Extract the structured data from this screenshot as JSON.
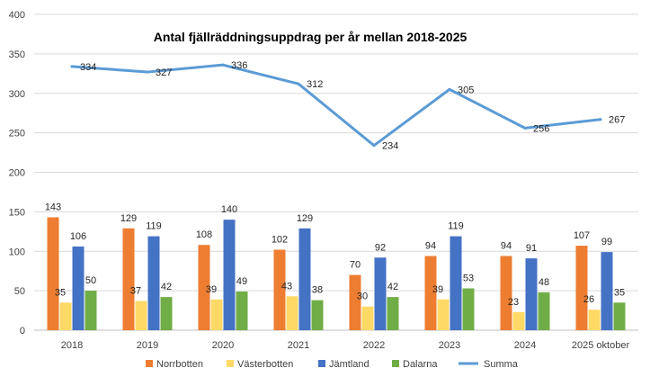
{
  "chart_data": {
    "type": "bar",
    "title": "Antal fjällräddningsuppdrag per år mellan 2018-2025",
    "categories": [
      "2018",
      "2019",
      "2020",
      "2021",
      "2022",
      "2023",
      "2024",
      "2025 oktober"
    ],
    "ylim": [
      0,
      400
    ],
    "yticks": [
      0,
      50,
      100,
      150,
      200,
      250,
      300,
      350,
      400
    ],
    "grid": true,
    "legend_position": "bottom",
    "series": [
      {
        "name": "Norrbotten",
        "kind": "bar",
        "color": "#ed7d31",
        "values": [
          143,
          129,
          108,
          102,
          70,
          94,
          94,
          107
        ]
      },
      {
        "name": "Västerbotten",
        "kind": "bar",
        "color": "#ffd966",
        "values": [
          35,
          37,
          39,
          43,
          30,
          39,
          23,
          26
        ]
      },
      {
        "name": "Jämtland",
        "kind": "bar",
        "color": "#4472c4",
        "values": [
          106,
          119,
          140,
          129,
          92,
          119,
          91,
          99
        ]
      },
      {
        "name": "Dalarna",
        "kind": "bar",
        "color": "#70ad47",
        "values": [
          50,
          42,
          49,
          38,
          42,
          53,
          48,
          35
        ]
      },
      {
        "name": "Summa",
        "kind": "line",
        "color": "#5b9bd5",
        "values": [
          334,
          327,
          336,
          312,
          234,
          305,
          256,
          267
        ]
      }
    ]
  }
}
